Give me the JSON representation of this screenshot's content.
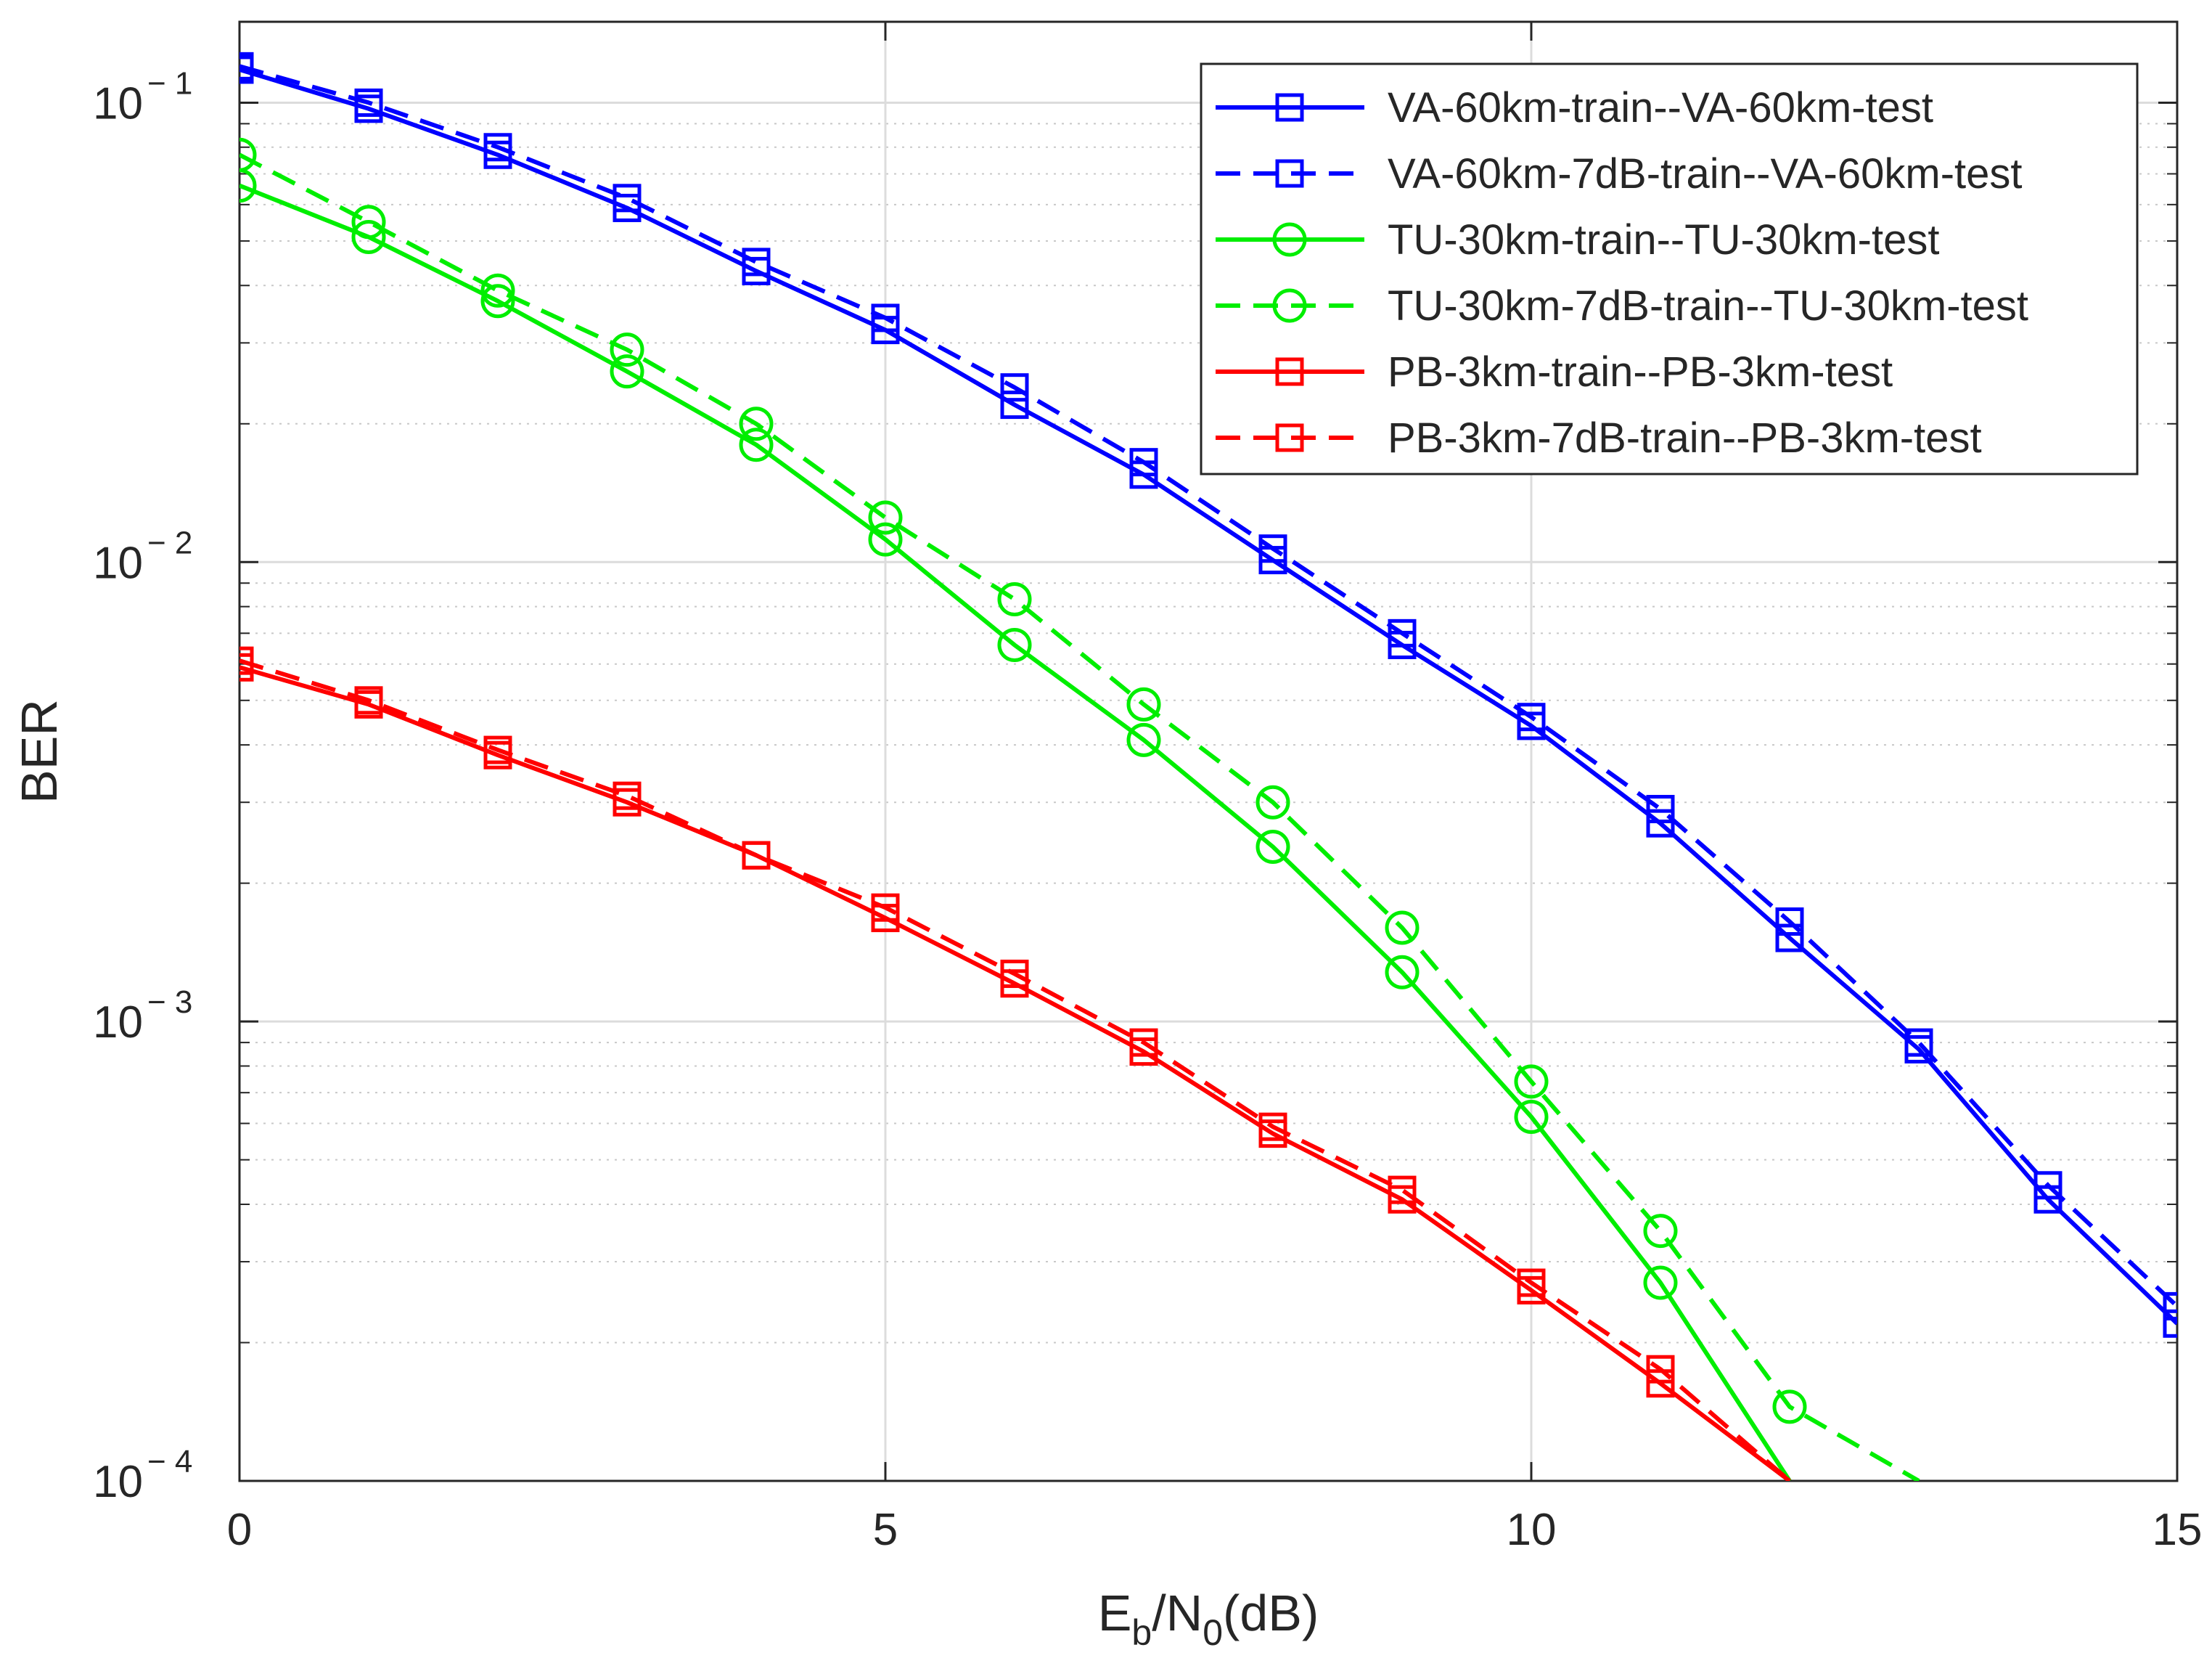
{
  "chart_data": {
    "type": "line",
    "title": "",
    "xlabel": {
      "main": "E",
      "sub1": "b",
      "mid": "/N",
      "sub2": "0",
      "tail": "(dB)"
    },
    "ylabel": "BER",
    "yscale": "log",
    "xlim": [
      0,
      15
    ],
    "ylim": [
      0.0001,
      0.15
    ],
    "xticks": [
      0,
      5,
      10,
      15
    ],
    "xtick_labels": [
      "0",
      "5",
      "10",
      "15"
    ],
    "yticks": [
      0.0001,
      0.001,
      0.01,
      0.1
    ],
    "ytick_labels": [
      {
        "base": "10",
        "exp": "− 4"
      },
      {
        "base": "10",
        "exp": "− 3"
      },
      {
        "base": "10",
        "exp": "− 2"
      },
      {
        "base": "10",
        "exp": "− 1"
      }
    ],
    "grid": true,
    "minor_grid": true,
    "legend_position": "top-right",
    "x": [
      0,
      1,
      2,
      3,
      4,
      5,
      6,
      7,
      8,
      9,
      10,
      11,
      12,
      13,
      14,
      15
    ],
    "series": [
      {
        "name": "VA-60km-train--VA-60km-test",
        "color": "#0000ff",
        "dash": "solid",
        "marker": "square",
        "values": [
          0.118,
          0.097,
          0.077,
          0.059,
          0.043,
          0.032,
          0.022,
          0.0155,
          0.0101,
          0.0066,
          0.0044,
          0.0027,
          0.00152,
          0.00087,
          0.00041,
          0.00022
        ]
      },
      {
        "name": "VA-60km-7dB-train--VA-60km-test",
        "color": "#0000ff",
        "dash": "dashed",
        "marker": "square",
        "values": [
          0.12,
          0.1,
          0.08,
          0.062,
          0.045,
          0.034,
          0.024,
          0.0165,
          0.0107,
          0.007,
          0.0046,
          0.0029,
          0.00165,
          0.0009,
          0.00044,
          0.00024
        ]
      },
      {
        "name": "TU-30km-train--TU-30km-test",
        "color": "#00ee00",
        "dash": "solid",
        "marker": "circle",
        "values": [
          0.066,
          0.051,
          0.037,
          0.026,
          0.018,
          0.0112,
          0.0066,
          0.0041,
          0.0024,
          0.00128,
          0.00062,
          0.00027,
          0.0001,
          null,
          null,
          null
        ]
      },
      {
        "name": "TU-30km-7dB-train--TU-30km-test",
        "color": "#00ee00",
        "dash": "dashed",
        "marker": "circle",
        "values": [
          0.077,
          0.055,
          0.039,
          0.029,
          0.02,
          0.0125,
          0.0083,
          0.0049,
          0.003,
          0.0016,
          0.00074,
          0.00035,
          0.000145,
          0.0001,
          null,
          null
        ]
      },
      {
        "name": "PB-3km-train--PB-3km-test",
        "color": "#ff0000",
        "dash": "solid",
        "marker": "square",
        "values": [
          0.0059,
          0.0049,
          0.0038,
          0.003,
          0.0023,
          0.00168,
          0.00121,
          0.00086,
          0.00057,
          0.00041,
          0.00026,
          0.000163,
          0.0001,
          null,
          null,
          null
        ]
      },
      {
        "name": "PB-3km-7dB-train--PB-3km-test",
        "color": "#ff0000",
        "dash": "dashed",
        "marker": "square",
        "values": [
          0.0061,
          0.005,
          0.0039,
          0.0031,
          0.0023,
          0.00177,
          0.00127,
          0.0009,
          0.00059,
          0.00043,
          0.00027,
          0.000175,
          0.0001,
          null,
          null,
          null
        ]
      }
    ]
  }
}
